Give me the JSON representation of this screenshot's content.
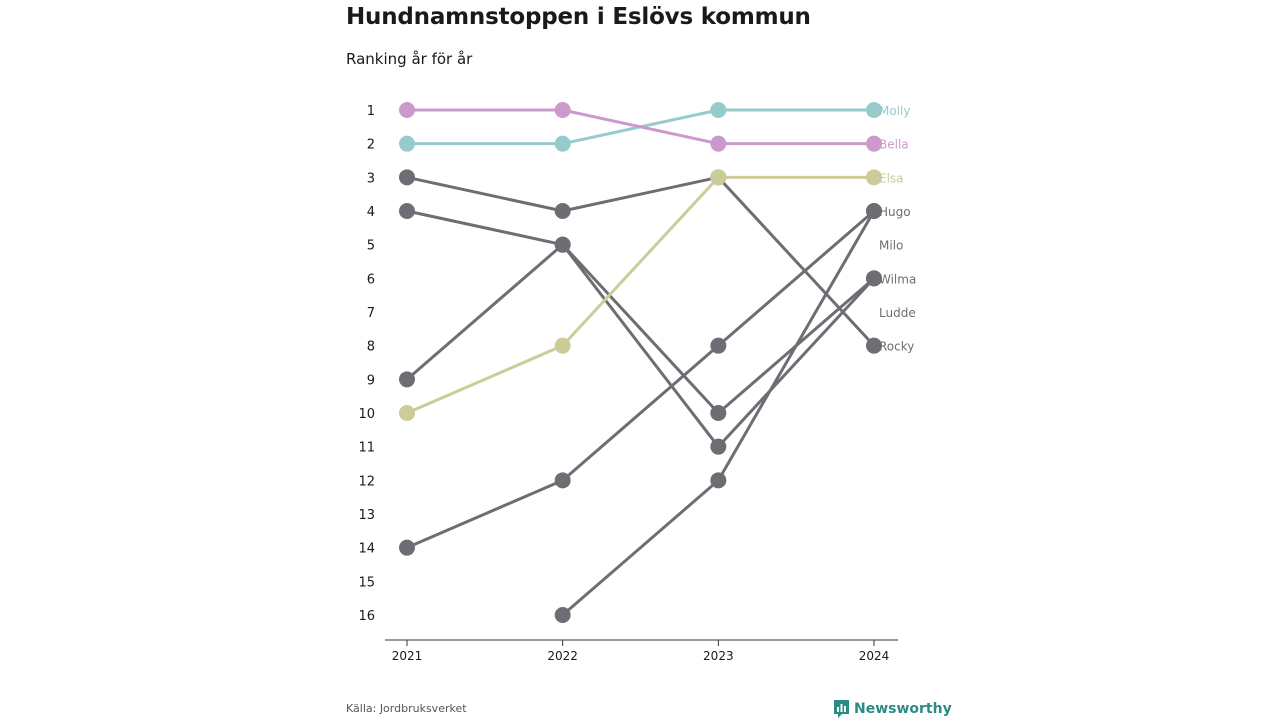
{
  "header": {
    "title": "Hundnamnstoppen i Eslövs kommun",
    "subtitle": "Ranking år för år"
  },
  "footer": {
    "source": "Källa: Jordbruksverket",
    "brand": "Newsworthy",
    "brand_icon": "bar-chart-logo-icon"
  },
  "colors": {
    "grey": "#6e6d73",
    "axis": "#333333",
    "text": "#1a1a1a",
    "brand": "#2a8a86"
  },
  "chart_data": {
    "type": "line",
    "x": [
      "2021",
      "2022",
      "2023",
      "2024"
    ],
    "y_ticks": [
      1,
      2,
      3,
      4,
      5,
      6,
      7,
      8,
      9,
      10,
      11,
      12,
      13,
      14,
      15,
      16
    ],
    "ylim": [
      1,
      16
    ],
    "y_reversed": true,
    "grid": false,
    "legend": "end-labels",
    "series": [
      {
        "name": "Molly",
        "color": "#97cbcb",
        "values": [
          2,
          2,
          1,
          1
        ]
      },
      {
        "name": "Bella",
        "color": "#cc99cc",
        "values": [
          1,
          1,
          2,
          2
        ]
      },
      {
        "name": "Elsa",
        "color": "#cccc99",
        "values": [
          10,
          8,
          3,
          3
        ]
      },
      {
        "name": "Hugo",
        "color": "#6e6d73",
        "values": [
          14,
          12,
          8,
          4
        ]
      },
      {
        "name": "Milo",
        "color": "#6e6d73",
        "values": [
          null,
          16,
          12,
          4
        ]
      },
      {
        "name": "Wilma",
        "color": "#6e6d73",
        "values": [
          4,
          5,
          10,
          6
        ]
      },
      {
        "name": "Ludde",
        "color": "#6e6d73",
        "values": [
          9,
          5,
          11,
          6
        ]
      },
      {
        "name": "Rocky",
        "color": "#6e6d73",
        "values": [
          3,
          4,
          3,
          8
        ]
      }
    ]
  }
}
